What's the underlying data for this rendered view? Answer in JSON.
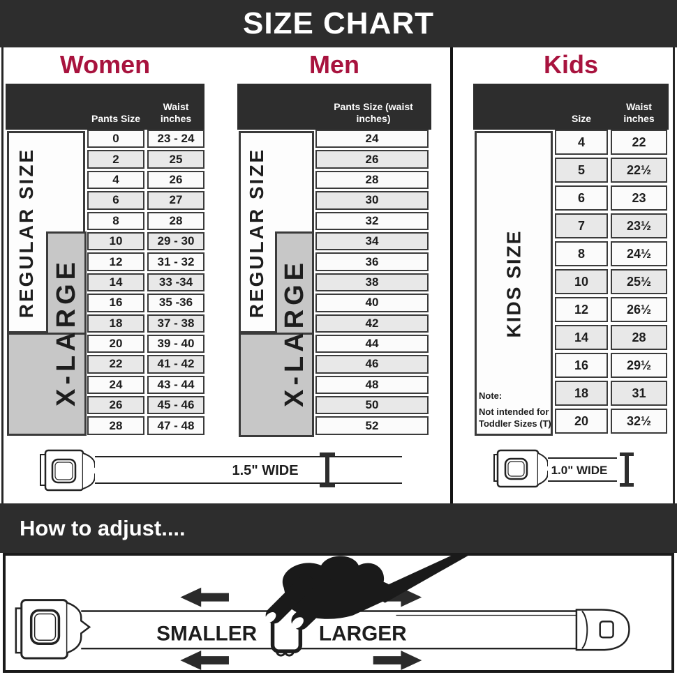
{
  "title": "SIZE CHART",
  "colors": {
    "dark_bar": "#2D2D2D",
    "accent_crimson": "#A8133E",
    "xlarge_gray": "#C7C7C7",
    "row_alt": "#E8E8E8",
    "cell_border": "#3A3A3A"
  },
  "women": {
    "heading": "Women",
    "col1_header": "Pants Size",
    "col2_header": "Waist inches",
    "regular_label": "REGULAR SIZE",
    "xlarge_label": "X-LARGE",
    "rows": [
      {
        "size": "0",
        "waist": "23 - 24"
      },
      {
        "size": "2",
        "waist": "25"
      },
      {
        "size": "4",
        "waist": "26"
      },
      {
        "size": "6",
        "waist": "27"
      },
      {
        "size": "8",
        "waist": "28"
      },
      {
        "size": "10",
        "waist": "29 - 30"
      },
      {
        "size": "12",
        "waist": "31 - 32"
      },
      {
        "size": "14",
        "waist": "33 -34"
      },
      {
        "size": "16",
        "waist": "35 -36"
      },
      {
        "size": "18",
        "waist": "37 - 38"
      },
      {
        "size": "20",
        "waist": "39 - 40"
      },
      {
        "size": "22",
        "waist": "41 - 42"
      },
      {
        "size": "24",
        "waist": "43 - 44"
      },
      {
        "size": "26",
        "waist": "45 - 46"
      },
      {
        "size": "28",
        "waist": "47 - 48"
      }
    ]
  },
  "men": {
    "heading": "Men",
    "col_header": "Pants Size (waist inches)",
    "regular_label": "REGULAR SIZE",
    "xlarge_label": "X-LARGE",
    "rows": [
      "24",
      "26",
      "28",
      "30",
      "32",
      "34",
      "36",
      "38",
      "40",
      "42",
      "44",
      "46",
      "48",
      "50",
      "52"
    ]
  },
  "kids": {
    "heading": "Kids",
    "col1_header": "Size",
    "col2_header": "Waist inches",
    "side_label": "KIDS SIZE",
    "note_title": "Note:",
    "note_line1": "Not intended for",
    "note_line2": "Toddler Sizes (T)",
    "rows": [
      {
        "size": "4",
        "waist": "22"
      },
      {
        "size": "5",
        "waist": "22½"
      },
      {
        "size": "6",
        "waist": "23"
      },
      {
        "size": "7",
        "waist": "23½"
      },
      {
        "size": "8",
        "waist": "24½"
      },
      {
        "size": "10",
        "waist": "25½"
      },
      {
        "size": "12",
        "waist": "26½"
      },
      {
        "size": "14",
        "waist": "28"
      },
      {
        "size": "16",
        "waist": "29½"
      },
      {
        "size": "18",
        "waist": "31"
      },
      {
        "size": "20",
        "waist": "32½"
      }
    ]
  },
  "belts": {
    "adult_width_label": "1.5\" WIDE",
    "kids_width_label": "1.0\" WIDE"
  },
  "adjust": {
    "heading": "How to adjust....",
    "smaller_label": "SMALLER",
    "larger_label": "LARGER"
  }
}
